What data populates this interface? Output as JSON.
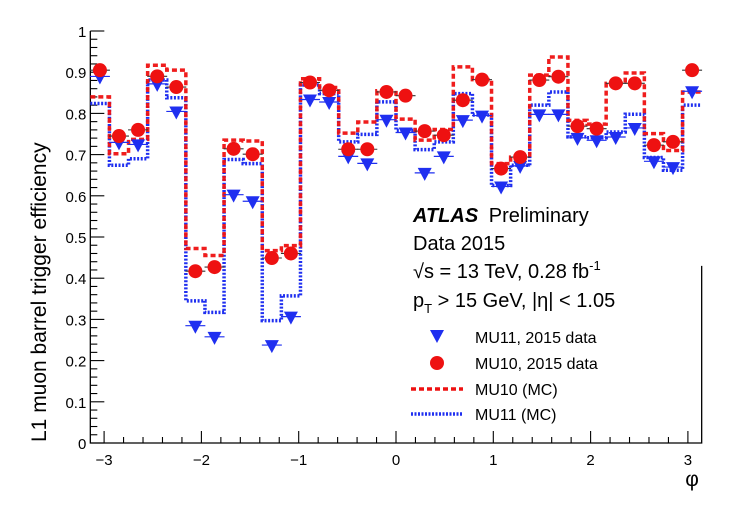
{
  "chart_data": {
    "type": "scatter",
    "title": "",
    "xlabel": "φ",
    "ylabel": "L1 muon barrel trigger efficiency",
    "xlim": [
      -3.14159,
      3.14159
    ],
    "ylim": [
      0,
      1
    ],
    "grid": false,
    "xticks": [
      -3,
      -2,
      -1,
      0,
      1,
      2,
      3
    ],
    "xtick_labels": [
      "−3",
      "−2",
      "−1",
      "0",
      "1",
      "2",
      "3"
    ],
    "yticks": [
      0,
      0.1,
      0.2,
      0.3,
      0.4,
      0.5,
      0.6,
      0.7,
      0.8,
      0.9,
      1
    ],
    "ytick_labels": [
      "0",
      "0.1",
      "0.2",
      "0.3",
      "0.4",
      "0.5",
      "0.6",
      "0.7",
      "0.8",
      "0.9",
      "1"
    ],
    "bins": 32,
    "x": [
      -3.043,
      -2.847,
      -2.651,
      -2.454,
      -2.258,
      -2.062,
      -1.865,
      -1.669,
      -1.473,
      -1.276,
      -1.08,
      -0.884,
      -0.687,
      -0.491,
      -0.295,
      -0.098,
      0.098,
      0.295,
      0.491,
      0.687,
      0.884,
      1.08,
      1.276,
      1.473,
      1.669,
      1.865,
      2.062,
      2.258,
      2.454,
      2.651,
      2.847,
      3.043
    ],
    "series": [
      {
        "name": "MU11, 2015 data",
        "style": "marker-triangle-down",
        "color": "#1f2ff0",
        "values": [
          0.88,
          0.72,
          0.715,
          0.862,
          0.795,
          0.275,
          0.248,
          0.593,
          0.577,
          0.228,
          0.297,
          0.824,
          0.818,
          0.686,
          0.669,
          0.775,
          0.744,
          0.646,
          0.686,
          0.774,
          0.785,
          0.613,
          0.663,
          0.788,
          0.788,
          0.731,
          0.725,
          0.733,
          0.755,
          0.674,
          0.66,
          0.844
        ]
      },
      {
        "name": "MU10, 2015 data",
        "style": "marker-circle",
        "color": "#ee1111",
        "values": [
          0.905,
          0.745,
          0.76,
          0.89,
          0.864,
          0.417,
          0.427,
          0.714,
          0.701,
          0.449,
          0.46,
          0.875,
          0.856,
          0.713,
          0.713,
          0.852,
          0.843,
          0.757,
          0.747,
          0.832,
          0.882,
          0.666,
          0.694,
          0.881,
          0.889,
          0.769,
          0.763,
          0.873,
          0.873,
          0.723,
          0.731,
          0.905
        ]
      },
      {
        "name": "MU10 (MC)",
        "style": "dashed-step",
        "color": "#ee1111",
        "values": [
          0.84,
          0.702,
          0.737,
          0.917,
          0.905,
          0.472,
          0.455,
          0.735,
          0.733,
          0.467,
          0.479,
          0.884,
          0.863,
          0.752,
          0.779,
          0.855,
          0.786,
          0.735,
          0.761,
          0.913,
          0.882,
          0.678,
          0.694,
          0.893,
          0.937,
          0.783,
          0.774,
          0.873,
          0.898,
          0.751,
          0.71,
          0.852
        ]
      },
      {
        "name": "MU11 (MC)",
        "style": "dotted-step",
        "color": "#1f2ff0",
        "values": [
          0.824,
          0.674,
          0.69,
          0.881,
          0.838,
          0.345,
          0.317,
          0.688,
          0.678,
          0.297,
          0.357,
          0.869,
          0.848,
          0.731,
          0.749,
          0.828,
          0.759,
          0.712,
          0.731,
          0.848,
          0.796,
          0.625,
          0.674,
          0.82,
          0.852,
          0.743,
          0.741,
          0.755,
          0.798,
          0.693,
          0.662,
          0.82
        ]
      }
    ],
    "legend": {
      "placement": "lower-right",
      "entries": [
        "MU11, 2015 data",
        "MU10, 2015 data",
        "MU10 (MC)",
        "MU11 (MC)"
      ]
    },
    "annotations": {
      "experiment": "ATLAS",
      "status": "Preliminary",
      "dataset": "Data 2015",
      "sqrt_s_prefix": "√s = 13 TeV, 0.28 fb",
      "lumi_exponent": "-1",
      "cut_p": "p",
      "cut_sub": "T",
      "cut_rest": " > 15 GeV, |η| < 1.05"
    }
  }
}
